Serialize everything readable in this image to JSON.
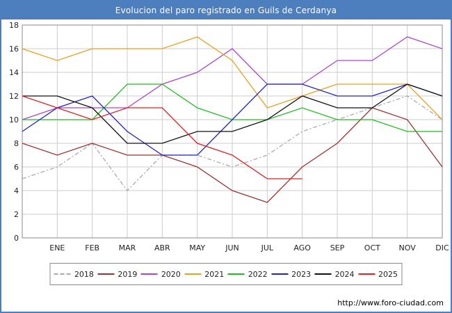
{
  "title": "Evolucion del paro registrado en Guils de Cerdanya",
  "footer": {
    "url": "http://www.foro-ciudad.com"
  },
  "colors": {
    "titlebar": "#4d7ebe",
    "grid": "#cccccc",
    "plot_border": "#888888"
  },
  "chart_data": {
    "type": "line",
    "title": "Evolucion del paro registrado en Guils de Cerdanya",
    "xlabel": "",
    "ylabel": "",
    "ylim": [
      0,
      18
    ],
    "y_ticks": [
      0,
      2,
      4,
      6,
      8,
      10,
      12,
      14,
      16,
      18
    ],
    "grid": true,
    "legend_position": "bottom",
    "x_labels": [
      "ENE",
      "FEB",
      "MAR",
      "ABR",
      "MAY",
      "JUN",
      "JUL",
      "AGO",
      "SEP",
      "OCT",
      "NOV",
      "DIC"
    ],
    "first_point_at_left_edge": true,
    "series": [
      {
        "name": "2018",
        "color": "#aaaaaa",
        "dashed": true,
        "values": [
          5,
          6,
          8,
          4,
          7,
          7,
          6,
          7,
          9,
          10,
          11,
          12,
          10
        ]
      },
      {
        "name": "2019",
        "color": "#993333",
        "dashed": false,
        "values": [
          8,
          7,
          8,
          7,
          7,
          6,
          4,
          3,
          6,
          8,
          11,
          10,
          6
        ]
      },
      {
        "name": "2020",
        "color": "#aa44cc",
        "dashed": false,
        "values": [
          10,
          11,
          11,
          11,
          13,
          14,
          16,
          13,
          13,
          15,
          15,
          17,
          16
        ]
      },
      {
        "name": "2021",
        "color": "#e6a021",
        "dashed": false,
        "values": [
          16,
          15,
          16,
          16,
          16,
          17,
          15,
          11,
          12,
          13,
          13,
          13,
          10
        ]
      },
      {
        "name": "2022",
        "color": "#22bb22",
        "dashed": false,
        "values": [
          10,
          10,
          10,
          13,
          13,
          11,
          10,
          10,
          11,
          10,
          10,
          9,
          9
        ]
      },
      {
        "name": "2023",
        "color": "#2222cc",
        "dashed": false,
        "values": [
          9,
          11,
          12,
          9,
          7,
          7,
          10,
          13,
          13,
          12,
          12,
          13,
          12
        ]
      },
      {
        "name": "2024",
        "color": "#111111",
        "dashed": false,
        "values": [
          12,
          12,
          11,
          8,
          8,
          9,
          9,
          10,
          12,
          11,
          11,
          13,
          12
        ]
      },
      {
        "name": "2025",
        "color": "#dd2222",
        "dashed": false,
        "values": [
          12,
          11,
          10,
          11,
          11,
          8,
          7,
          5,
          5,
          null,
          null,
          null,
          null
        ]
      }
    ]
  }
}
